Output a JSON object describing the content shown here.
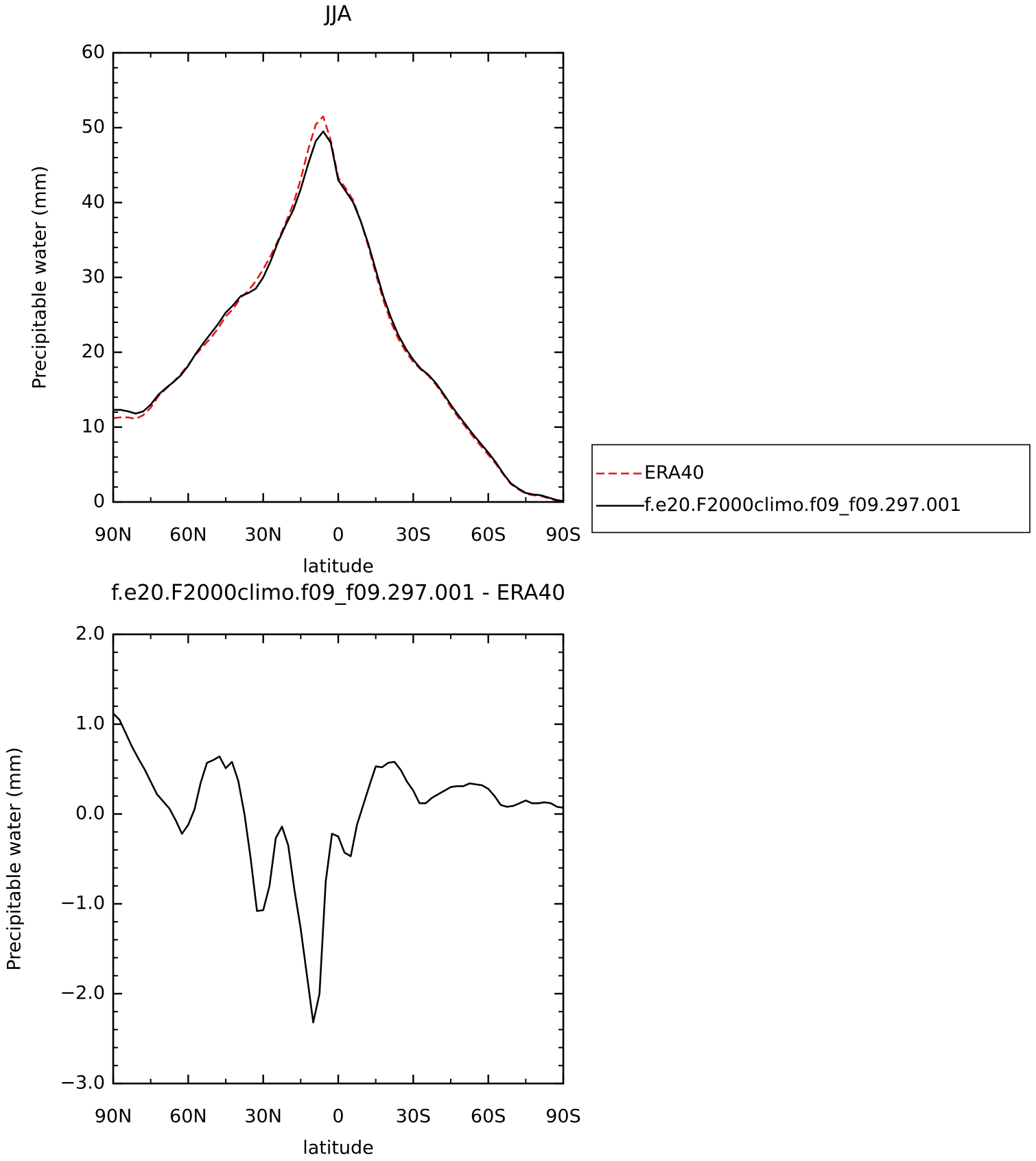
{
  "chart_data": [
    {
      "type": "line",
      "title": "JJA",
      "x_label": "latitude",
      "y_label": "Precipitable water (mm)",
      "xlim": [
        90,
        -90
      ],
      "xticks": [
        {
          "value": 90,
          "label": "90N"
        },
        {
          "value": 60,
          "label": "60N"
        },
        {
          "value": 30,
          "label": "30N"
        },
        0,
        {
          "value": -30,
          "label": "30S"
        },
        {
          "value": -60,
          "label": "60S"
        },
        {
          "value": -90,
          "label": "90S"
        }
      ],
      "ylim": [
        0,
        60
      ],
      "yticks": [
        0,
        10,
        20,
        30,
        40,
        50,
        60
      ],
      "legend": "right",
      "x": [
        90,
        87,
        84,
        81,
        78,
        75,
        72,
        69,
        66,
        63,
        60,
        57,
        54,
        51,
        48,
        45,
        42,
        39,
        36,
        33,
        30,
        27,
        24,
        21,
        18,
        15,
        12,
        9,
        6,
        3,
        0,
        -3,
        -6,
        -9,
        -12,
        -15,
        -18,
        -21,
        -24,
        -27,
        -30,
        -33,
        -36,
        -39,
        -42,
        -45,
        -48,
        -51,
        -54,
        -57,
        -60,
        -63,
        -66,
        -69,
        -72,
        -75,
        -78,
        -81,
        -84,
        -87,
        -90
      ],
      "series": [
        {
          "name": "ERA40",
          "color": "#e8141b",
          "dashed": true,
          "values": [
            11.2,
            11.3,
            11.3,
            11.1,
            11.6,
            12.6,
            14.1,
            15.1,
            16.0,
            17.1,
            18.3,
            19.7,
            20.8,
            21.9,
            23.2,
            24.8,
            25.8,
            27.3,
            28.2,
            29.5,
            31.1,
            32.9,
            35.0,
            37.3,
            39.8,
            43.1,
            47.1,
            50.4,
            51.5,
            48.3,
            43.3,
            41.9,
            40.3,
            37.5,
            34.2,
            30.5,
            27.0,
            24.1,
            21.8,
            20.1,
            18.7,
            17.7,
            16.9,
            15.7,
            14.3,
            12.7,
            11.3,
            10.0,
            8.7,
            7.5,
            6.3,
            5.1,
            3.7,
            2.4,
            1.7,
            1.1,
            0.9,
            0.8,
            0.5,
            0.2,
            0.0
          ]
        },
        {
          "name": "f.e20.F2000climo.f09_f09.297.001",
          "color": "#000000",
          "dashed": false,
          "values": [
            12.3,
            12.3,
            12.1,
            11.8,
            12.1,
            13.0,
            14.3,
            15.2,
            16.0,
            16.9,
            18.2,
            19.8,
            21.2,
            22.5,
            23.8,
            25.3,
            26.3,
            27.5,
            27.9,
            28.5,
            30.0,
            32.2,
            34.8,
            37.0,
            39.0,
            41.8,
            45.2,
            48.2,
            49.5,
            48.0,
            43.0,
            41.5,
            40.0,
            37.5,
            34.5,
            31.0,
            27.5,
            24.7,
            22.3,
            20.5,
            19.0,
            17.8,
            17.0,
            15.9,
            14.5,
            13.0,
            11.6,
            10.3,
            9.0,
            7.8,
            6.6,
            5.3,
            3.8,
            2.5,
            1.8,
            1.2,
            1.0,
            0.9,
            0.6,
            0.3,
            0.1
          ]
        }
      ]
    },
    {
      "type": "line",
      "title": "f.e20.F2000climo.f09_f09.297.001 - ERA40",
      "x_label": "latitude",
      "y_label": "Precipitable water (mm)",
      "xlim": [
        90,
        -90
      ],
      "xticks": [
        {
          "value": 90,
          "label": "90N"
        },
        {
          "value": 60,
          "label": "60N"
        },
        {
          "value": 30,
          "label": "30N"
        },
        0,
        {
          "value": -30,
          "label": "30S"
        },
        {
          "value": -60,
          "label": "60S"
        },
        {
          "value": -90,
          "label": "90S"
        }
      ],
      "ylim": [
        -3,
        2
      ],
      "yticks": [
        {
          "value": -3,
          "label": "−3.0"
        },
        {
          "value": -2,
          "label": "−2.0"
        },
        {
          "value": -1,
          "label": "−1.0"
        },
        {
          "value": 0,
          "label": "0.0"
        },
        {
          "value": 1,
          "label": "1.0"
        },
        {
          "value": 2,
          "label": "2.0"
        }
      ],
      "color": "#000000",
      "x": [
        90,
        87.5,
        85,
        82.5,
        80,
        77.5,
        75,
        72.5,
        70,
        67.5,
        65,
        62.5,
        60,
        57.5,
        55,
        52.5,
        50,
        47.5,
        45,
        42.5,
        40,
        37.5,
        35,
        32.5,
        30,
        27.5,
        25,
        22.5,
        20,
        17.5,
        15,
        12.5,
        10,
        7.5,
        5,
        2.5,
        0,
        -2.5,
        -5,
        -7.5,
        -10,
        -12.5,
        -15,
        -17.5,
        -20,
        -22.5,
        -25,
        -27.5,
        -30,
        -32.5,
        -35,
        -37.5,
        -40,
        -42.5,
        -45,
        -47.5,
        -50,
        -52.5,
        -55,
        -57.5,
        -60,
        -62.5,
        -65,
        -67.5,
        -70,
        -72.5,
        -75,
        -77.5,
        -80,
        -82.5,
        -85,
        -87.5,
        -90
      ],
      "values": [
        1.12,
        1.05,
        0.9,
        0.75,
        0.62,
        0.5,
        0.36,
        0.22,
        0.14,
        0.06,
        -0.07,
        -0.22,
        -0.12,
        0.05,
        0.35,
        0.57,
        0.6,
        0.64,
        0.51,
        0.58,
        0.37,
        0.0,
        -0.5,
        -1.08,
        -1.07,
        -0.8,
        -0.27,
        -0.14,
        -0.35,
        -0.85,
        -1.28,
        -1.8,
        -2.32,
        -2.0,
        -0.75,
        -0.22,
        -0.25,
        -0.43,
        -0.47,
        -0.12,
        0.1,
        0.32,
        0.53,
        0.52,
        0.57,
        0.58,
        0.49,
        0.36,
        0.26,
        0.12,
        0.12,
        0.18,
        0.22,
        0.26,
        0.3,
        0.31,
        0.31,
        0.34,
        0.33,
        0.32,
        0.28,
        0.2,
        0.1,
        0.08,
        0.09,
        0.12,
        0.15,
        0.12,
        0.12,
        0.13,
        0.12,
        0.08,
        0.07
      ]
    }
  ]
}
